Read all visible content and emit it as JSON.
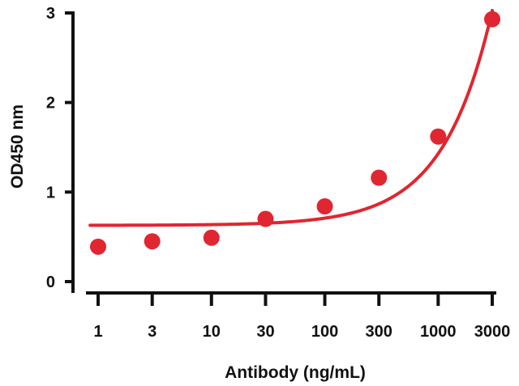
{
  "chart_data": {
    "type": "scatter",
    "xlabel": "Antibody (ng/mL)",
    "ylabel": "OD450 nm",
    "x_scale": "log",
    "x_ticks": [
      "1",
      "3",
      "10",
      "30",
      "100",
      "300",
      "1000",
      "3000"
    ],
    "y_ticks": [
      "0",
      "1",
      "2",
      "3"
    ],
    "ylim": [
      0,
      3
    ],
    "grid": false,
    "series": [
      {
        "points": [
          {
            "x": 1,
            "y": 0.39
          },
          {
            "x": 3,
            "y": 0.45
          },
          {
            "x": 10,
            "y": 0.49
          },
          {
            "x": 30,
            "y": 0.7
          },
          {
            "x": 100,
            "y": 0.84
          },
          {
            "x": 300,
            "y": 1.16
          },
          {
            "x": 1000,
            "y": 1.62
          },
          {
            "x": 3000,
            "y": 2.93
          }
        ],
        "fit_curve": true,
        "color": "#e02630"
      }
    ]
  }
}
